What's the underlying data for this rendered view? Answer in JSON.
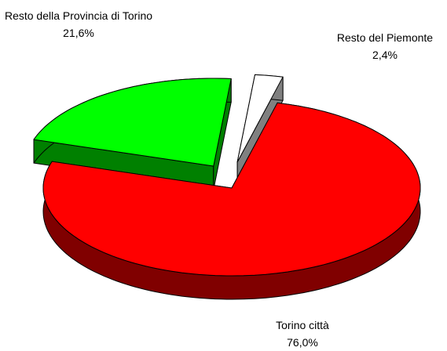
{
  "chart_data": {
    "type": "pie3d",
    "categories": [
      "Torino città",
      "Resto della Provincia di Torino",
      "Resto del Piemonte"
    ],
    "values": [
      76.0,
      21.6,
      2.4
    ],
    "value_labels": [
      "76,0%",
      "21,6%",
      "2,4%"
    ],
    "colors": [
      "#ff0000",
      "#00ff00",
      "#ffffff"
    ],
    "exploded": [
      false,
      true,
      true
    ]
  }
}
